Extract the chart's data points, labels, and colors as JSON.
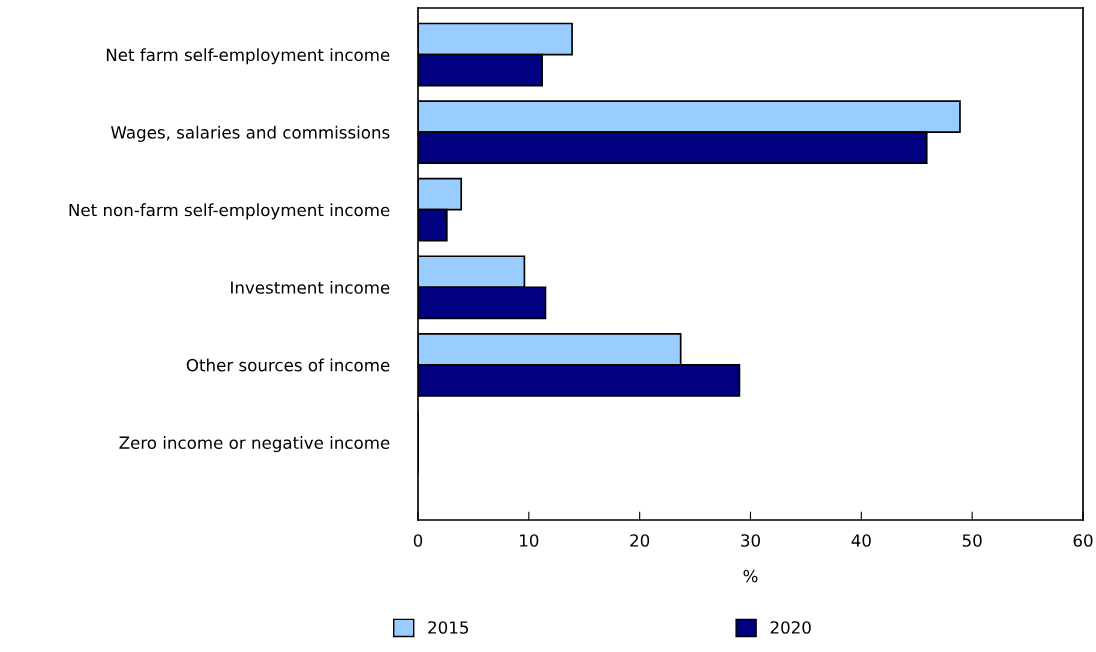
{
  "chart_data": {
    "type": "bar",
    "orientation": "horizontal",
    "xlabel": "%",
    "categories": [
      "Net farm self-employment income",
      "Wages, salaries and commissions",
      "Net non-farm self-employment income",
      "Investment income",
      "Other sources of income",
      "Zero income or negative income"
    ],
    "series": [
      {
        "name": "2015",
        "color": "#99ccff",
        "values": [
          13.9,
          48.9,
          3.9,
          9.6,
          23.7,
          0
        ]
      },
      {
        "name": "2020",
        "color": "#000080",
        "values": [
          11.2,
          45.9,
          2.6,
          11.5,
          29.0,
          0
        ]
      }
    ],
    "xlim": [
      0,
      60
    ],
    "xticks": [
      0,
      10,
      20,
      30,
      40,
      50,
      60
    ],
    "grid": false,
    "legend": "bottom"
  }
}
